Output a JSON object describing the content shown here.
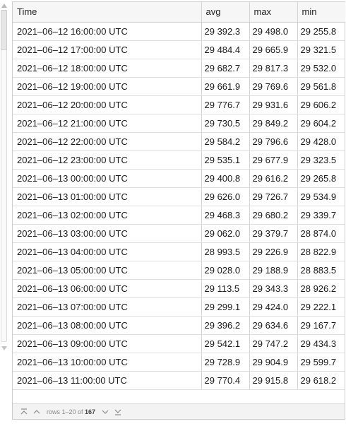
{
  "table": {
    "columns": [
      "Time",
      "avg",
      "max",
      "min"
    ],
    "rows": [
      [
        "2021–06–12 16:00:00 UTC",
        "29 392.3",
        "29 498.0",
        "29 255.8"
      ],
      [
        "2021–06–12 17:00:00 UTC",
        "29 484.4",
        "29 665.9",
        "29 321.5"
      ],
      [
        "2021–06–12 18:00:00 UTC",
        "29 682.7",
        "29 817.3",
        "29 532.0"
      ],
      [
        "2021–06–12 19:00:00 UTC",
        "29 661.9",
        "29 769.6",
        "29 561.8"
      ],
      [
        "2021–06–12 20:00:00 UTC",
        "29 776.7",
        "29 931.6",
        "29 606.2"
      ],
      [
        "2021–06–12 21:00:00 UTC",
        "29 730.5",
        "29 849.2",
        "29 604.2"
      ],
      [
        "2021–06–12 22:00:00 UTC",
        "29 584.2",
        "29 796.6",
        "29 428.0"
      ],
      [
        "2021–06–12 23:00:00 UTC",
        "29 535.1",
        "29 677.9",
        "29 323.5"
      ],
      [
        "2021–06–13 00:00:00 UTC",
        "29 400.8",
        "29 616.2",
        "29 265.8"
      ],
      [
        "2021–06–13 01:00:00 UTC",
        "29 626.0",
        "29 726.7",
        "29 534.9"
      ],
      [
        "2021–06–13 02:00:00 UTC",
        "29 468.3",
        "29 680.2",
        "29 339.7"
      ],
      [
        "2021–06–13 03:00:00 UTC",
        "29 062.0",
        "29 379.7",
        "28 874.0"
      ],
      [
        "2021–06–13 04:00:00 UTC",
        "28 993.5",
        "29 226.9",
        "28 822.9"
      ],
      [
        "2021–06–13 05:00:00 UTC",
        "29 028.0",
        "29 188.9",
        "28 883.5"
      ],
      [
        "2021–06–13 06:00:00 UTC",
        "29 113.5",
        "29 343.3",
        "28 926.2"
      ],
      [
        "2021–06–13 07:00:00 UTC",
        "29 299.1",
        "29 424.0",
        "29 222.1"
      ],
      [
        "2021–06–13 08:00:00 UTC",
        "29 396.2",
        "29 634.6",
        "29 167.7"
      ],
      [
        "2021–06–13 09:00:00 UTC",
        "29 542.1",
        "29 747.2",
        "29 434.3"
      ],
      [
        "2021–06–13 10:00:00 UTC",
        "29 728.9",
        "29 904.9",
        "29 599.7"
      ],
      [
        "2021–06–13 11:00:00 UTC",
        "29 770.4",
        "29 915.8",
        "29 618.2"
      ]
    ]
  },
  "pagination": {
    "rows_prefix": "rows 1–20 of",
    "total": "167",
    "icons": [
      "first-page-icon",
      "previous-page-icon",
      "next-page-icon",
      "last-page-icon"
    ]
  },
  "colors": {
    "border": "#cfcfcf",
    "header_bg": "#f6f6f6",
    "footer_bg": "#f3f3f3",
    "icon": "#8a8a8a"
  }
}
